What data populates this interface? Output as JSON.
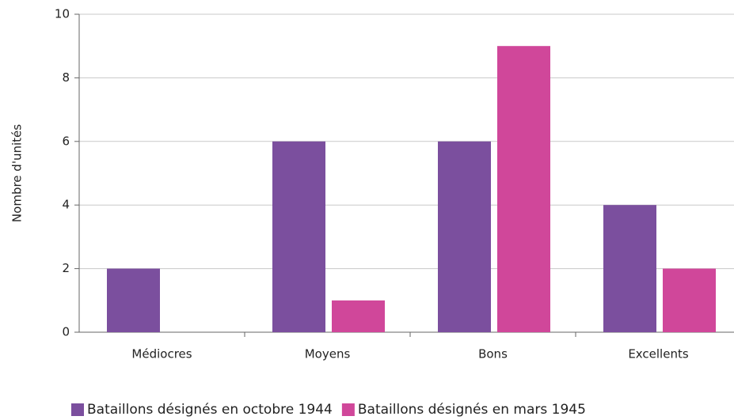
{
  "chart_data": {
    "type": "bar",
    "ylabel": "Nombre d'unités",
    "categories": [
      "Médiocres",
      "Moyens",
      "Bons",
      "Excellents"
    ],
    "series": [
      {
        "name": "Bataillons désignés en octobre 1944",
        "color": "#7b4f9e",
        "values": [
          2,
          6,
          6,
          4
        ]
      },
      {
        "name": "Bataillons désignés en mars 1945",
        "color": "#d0479a",
        "values": [
          0,
          1,
          9,
          2
        ]
      }
    ],
    "ylim": [
      0,
      10
    ],
    "yticks": [
      0,
      2,
      4,
      6,
      8,
      10
    ],
    "grid": true,
    "legend": "bottom"
  }
}
